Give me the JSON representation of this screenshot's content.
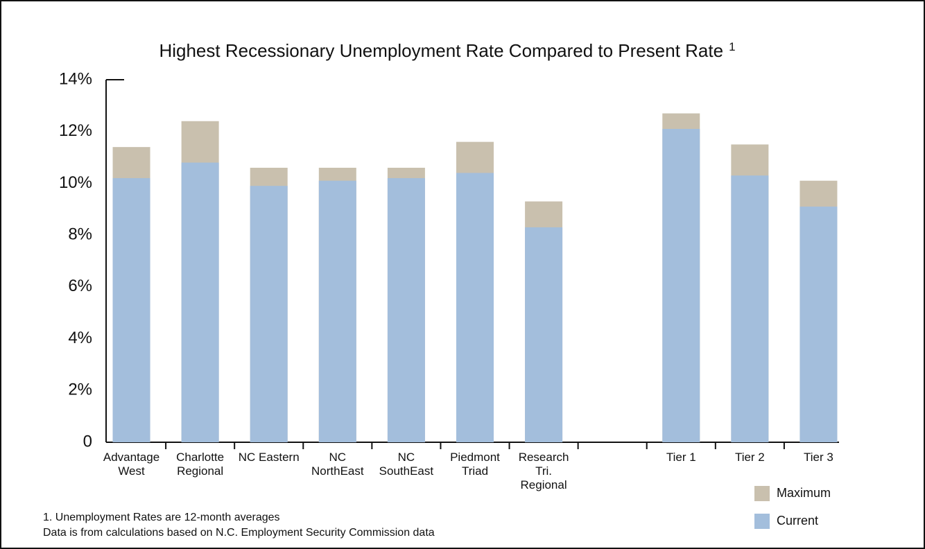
{
  "chart_data": {
    "type": "overlap_bar",
    "title": "Highest Recessionary Unemployment Rate Compared to Present Rate",
    "title_note": "1",
    "categories": [
      "Advantage\nWest",
      "Charlotte\nRegional",
      "NC Eastern",
      "NC\nNorthEast",
      "NC\nSouthEast",
      "Piedmont\nTriad",
      "Research\nTri.\nRegional",
      null,
      "Tier 1",
      "Tier 2",
      "Tier 3"
    ],
    "series": [
      {
        "name": "Maximum",
        "color": "#c9c0ae",
        "values": [
          11.4,
          12.4,
          10.6,
          10.6,
          10.6,
          11.6,
          9.3,
          null,
          12.7,
          11.5,
          10.1
        ]
      },
      {
        "name": "Current",
        "color": "#a3bedc",
        "values": [
          10.2,
          10.8,
          9.9,
          10.1,
          10.2,
          10.4,
          8.3,
          null,
          12.1,
          10.3,
          9.1
        ]
      }
    ],
    "ylim": [
      0,
      14
    ],
    "yticks": [
      0,
      {
        "value": 2,
        "label": "2%"
      },
      {
        "value": 4,
        "label": "4%"
      },
      {
        "value": 6,
        "label": "6%"
      },
      {
        "value": 8,
        "label": "8%"
      },
      {
        "value": 10,
        "label": "10%"
      },
      {
        "value": 12,
        "label": "12%"
      },
      {
        "value": 14,
        "label": "14%"
      }
    ],
    "legend": "bottom-right",
    "footnotes": [
      "1. Unemployment Rates are 12-month averages",
      "Data is from calculations based on N.C. Employment Security Commission data"
    ]
  }
}
